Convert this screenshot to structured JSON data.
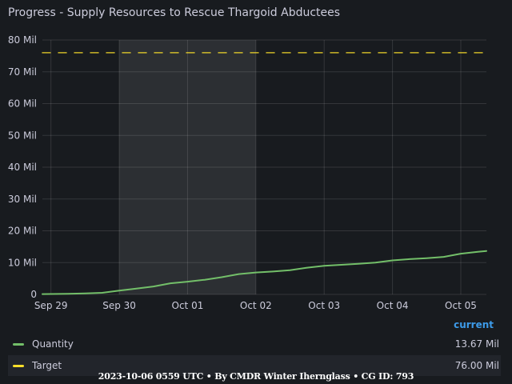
{
  "panel": {
    "title": "Progress - Supply Resources to Rescue Thargoid Abductees"
  },
  "chart_data": {
    "type": "line",
    "title": "Progress - Supply Resources to Rescue Thargoid Abductees",
    "x_ticks": [
      "Sep 29",
      "Sep 30",
      "Oct 01",
      "Oct 02",
      "Oct 03",
      "Oct 04",
      "Oct 05"
    ],
    "y_ticks": [
      "0",
      "10 Mil",
      "20 Mil",
      "30 Mil",
      "40 Mil",
      "50 Mil",
      "60 Mil",
      "70 Mil",
      "80 Mil"
    ],
    "xlim": [
      "2023-09-28T21:00",
      "2023-10-05T09:00"
    ],
    "ylim": [
      0,
      80
    ],
    "y_unit": "Mil",
    "grid": true,
    "highlight_region": [
      "2023-09-30T00:00",
      "2023-10-02T00:00"
    ],
    "series": [
      {
        "name": "Quantity",
        "color": "#73bf69",
        "x": [
          "2023-09-28T21:00",
          "2023-09-29T06:00",
          "2023-09-29T12:00",
          "2023-09-29T18:00",
          "2023-09-30T00:00",
          "2023-09-30T06:00",
          "2023-09-30T12:00",
          "2023-09-30T18:00",
          "2023-10-01T00:00",
          "2023-10-01T06:00",
          "2023-10-01T12:00",
          "2023-10-01T18:00",
          "2023-10-02T00:00",
          "2023-10-02T06:00",
          "2023-10-02T12:00",
          "2023-10-02T18:00",
          "2023-10-03T00:00",
          "2023-10-03T06:00",
          "2023-10-03T12:00",
          "2023-10-03T18:00",
          "2023-10-04T00:00",
          "2023-10-04T06:00",
          "2023-10-04T12:00",
          "2023-10-04T18:00",
          "2023-10-05T00:00",
          "2023-10-05T06:00",
          "2023-10-05T09:00"
        ],
        "values": [
          0.1,
          0.2,
          0.3,
          0.5,
          1.2,
          1.8,
          2.5,
          3.5,
          4.0,
          4.6,
          5.4,
          6.4,
          6.9,
          7.2,
          7.6,
          8.4,
          9.0,
          9.3,
          9.6,
          10.0,
          10.7,
          11.1,
          11.4,
          11.8,
          12.8,
          13.4,
          13.67
        ],
        "current": "13.67 Mil"
      },
      {
        "name": "Target",
        "color": "#fade2a",
        "x": [
          "2023-09-28T21:00",
          "2023-10-05T09:00"
        ],
        "values": [
          76.0,
          76.0
        ],
        "current": "76.00 Mil"
      }
    ],
    "legend": {
      "placement": "bottom",
      "column_header": "current"
    }
  },
  "footer": {
    "text": "2023-10-06 0559 UTC • By CMDR Winter Ihernglаss • CG ID: 793"
  }
}
